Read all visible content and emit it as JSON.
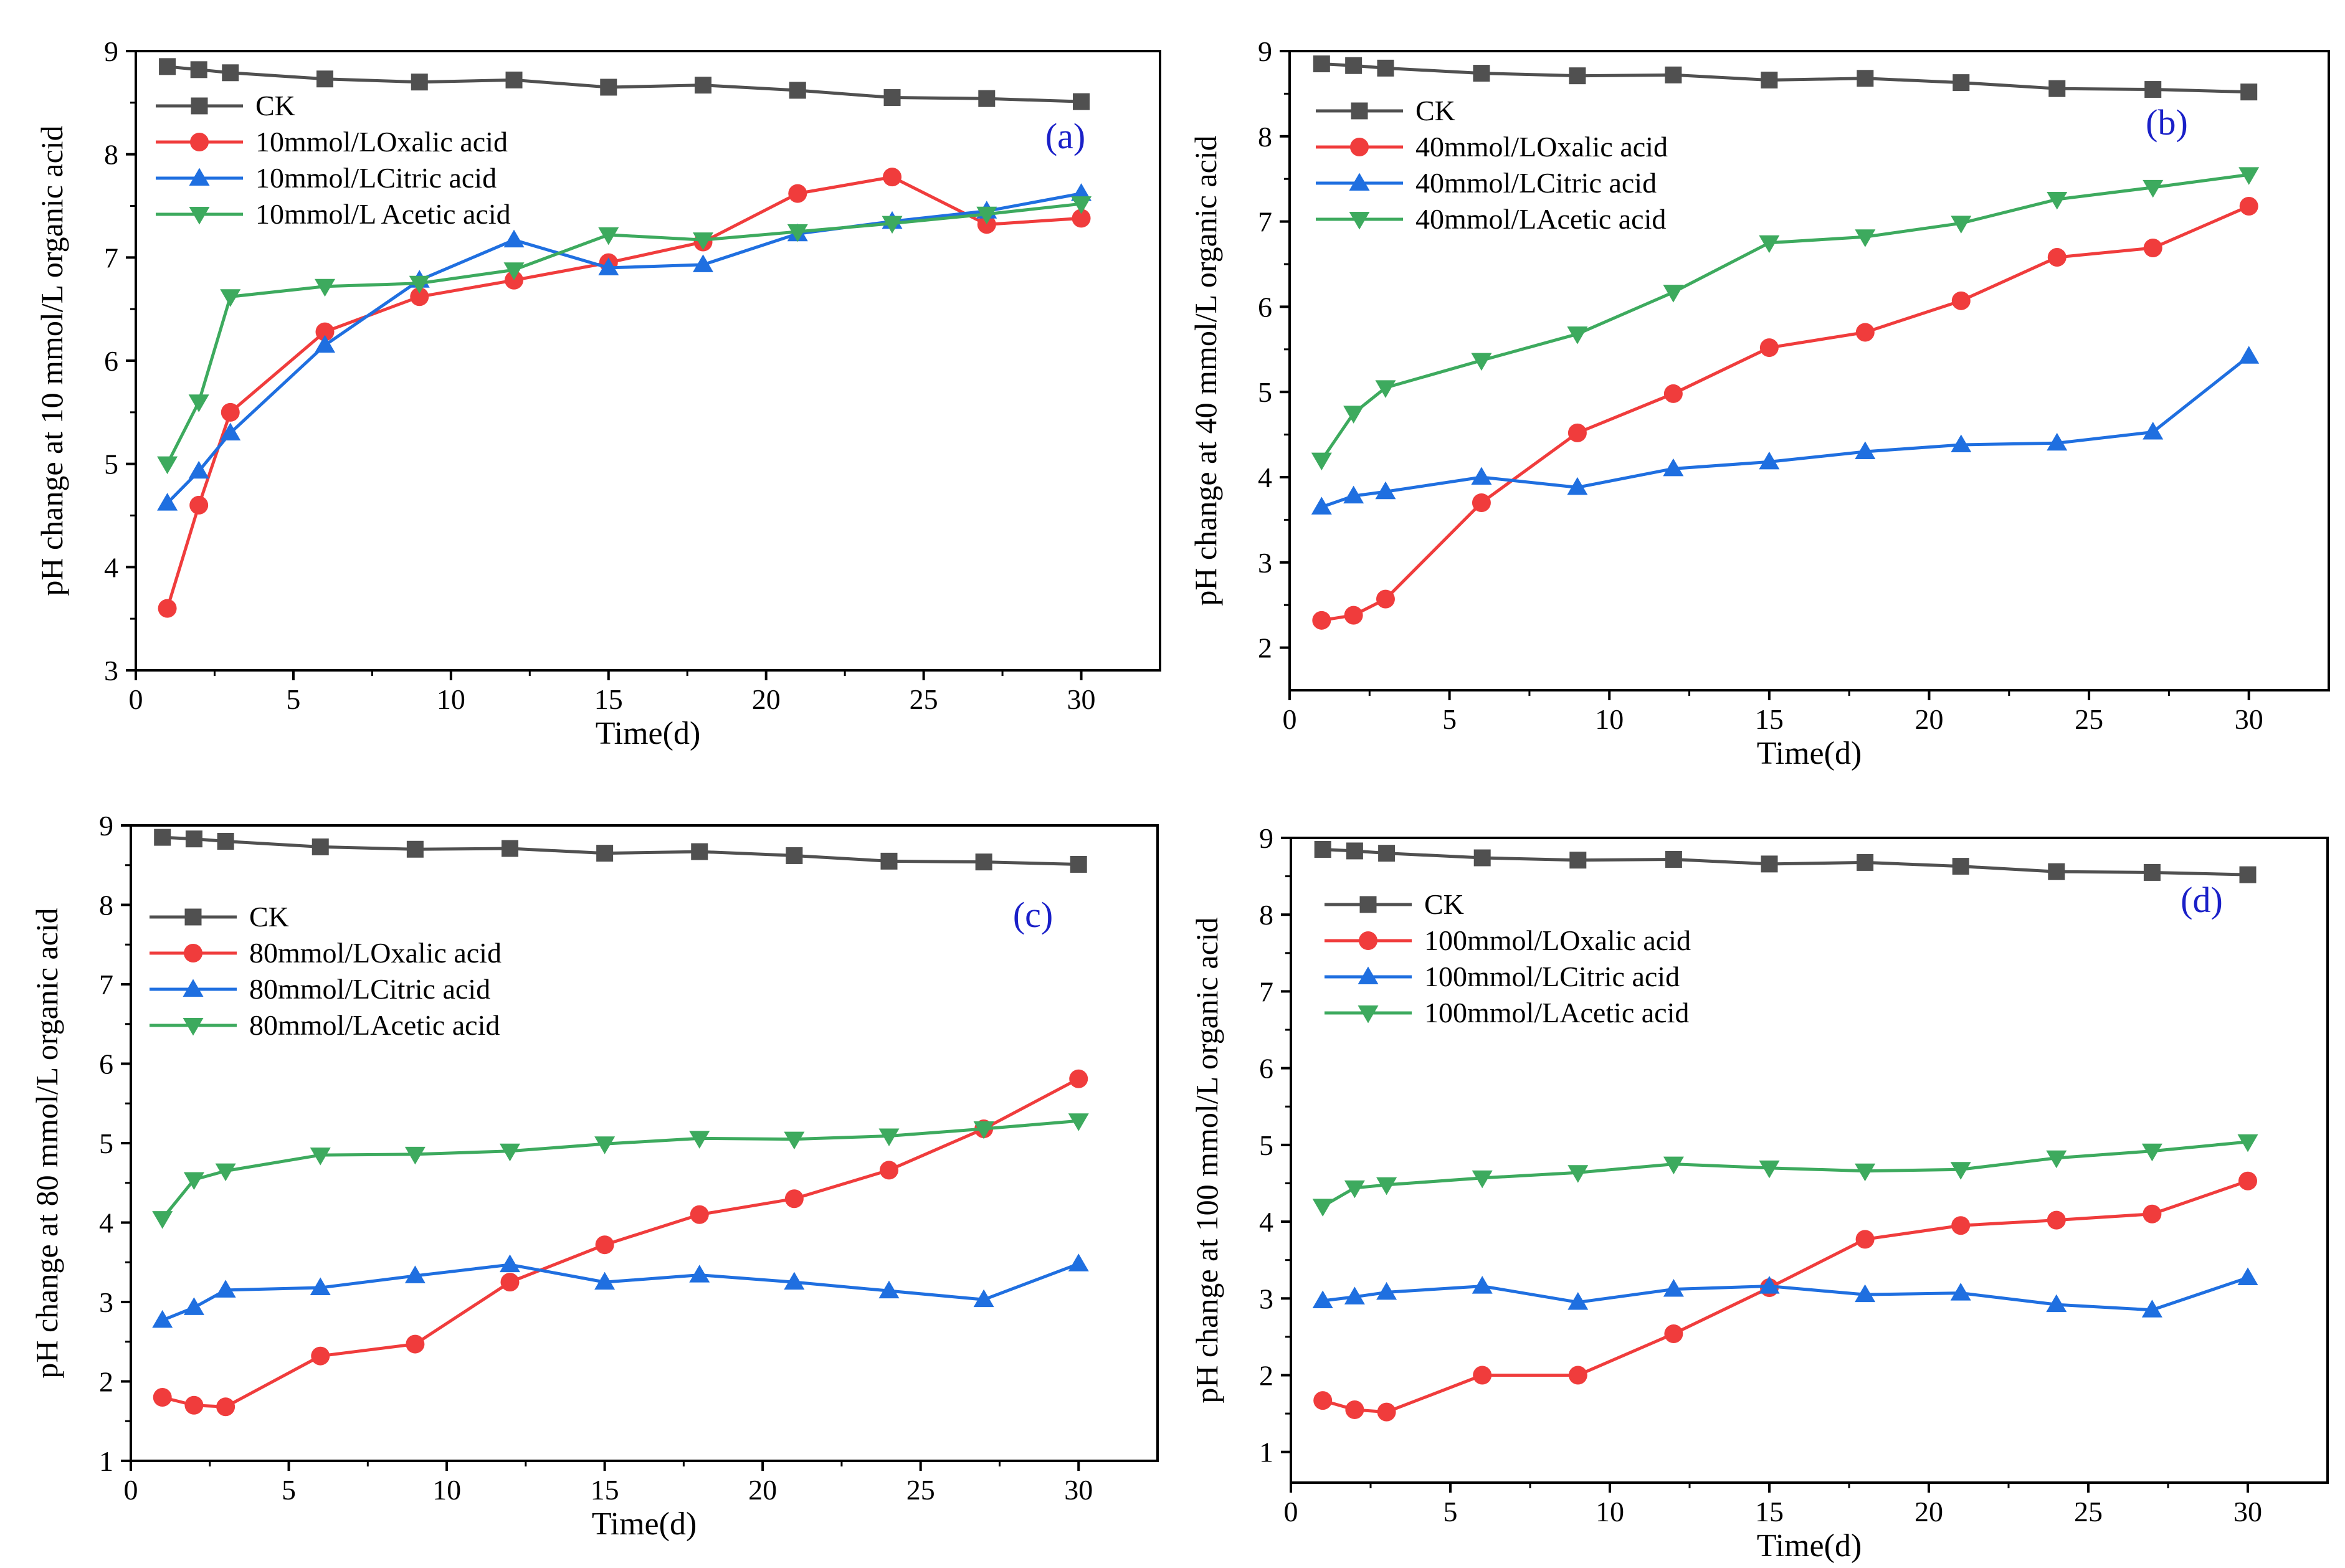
{
  "colors": {
    "CK": "#505050",
    "Oxalic": "#f03c3c",
    "Citric": "#1f6fe0",
    "Acetic": "#3daa5e",
    "panel_label": "#1a20c8"
  },
  "chart_data": [
    {
      "type": "line",
      "panel": "(a)",
      "xlabel": "Time(d)",
      "ylabel": "pH change at 10 mmol/L organic acid",
      "xlim": [
        0,
        32.5
      ],
      "ylim": [
        3,
        9
      ],
      "xticks": [
        0,
        5,
        10,
        15,
        20,
        25,
        30
      ],
      "yticks": [
        3,
        4,
        5,
        6,
        7,
        8,
        9
      ],
      "x": [
        1,
        2,
        3,
        6,
        9,
        12,
        15,
        18,
        21,
        24,
        27,
        30
      ],
      "series": [
        {
          "name": "CK",
          "key": "CK",
          "marker": "square",
          "values": [
            8.85,
            8.82,
            8.79,
            8.73,
            8.7,
            8.72,
            8.65,
            8.67,
            8.62,
            8.55,
            8.54,
            8.51
          ]
        },
        {
          "name": "10mmol/LOxalic acid",
          "key": "Oxalic",
          "marker": "circle",
          "values": [
            3.6,
            4.6,
            5.5,
            6.28,
            6.62,
            6.78,
            6.95,
            7.15,
            7.62,
            7.78,
            7.32,
            7.38
          ]
        },
        {
          "name": "10mmol/LCitric acid",
          "key": "Citric",
          "marker": "triangle-up",
          "values": [
            4.62,
            4.93,
            5.3,
            6.15,
            6.78,
            7.17,
            6.9,
            6.93,
            7.23,
            7.35,
            7.45,
            7.62
          ]
        },
        {
          "name": "10mmol/L Acetic acid",
          "key": "Acetic",
          "marker": "triangle-down",
          "values": [
            5.0,
            5.6,
            6.62,
            6.72,
            6.75,
            6.88,
            7.22,
            7.17,
            7.25,
            7.33,
            7.42,
            7.52
          ]
        }
      ]
    },
    {
      "type": "line",
      "panel": "(b)",
      "xlabel": "Time(d)",
      "ylabel": "pH change at 40 mmol/L organic acid",
      "xlim": [
        0,
        32.5
      ],
      "ylim": [
        1.5,
        9
      ],
      "xticks": [
        0,
        5,
        10,
        15,
        20,
        25,
        30
      ],
      "yticks": [
        2,
        3,
        4,
        5,
        6,
        7,
        8,
        9
      ],
      "x": [
        1,
        2,
        3,
        6,
        9,
        12,
        15,
        18,
        21,
        24,
        27,
        30
      ],
      "series": [
        {
          "name": "CK",
          "key": "CK",
          "marker": "square",
          "values": [
            8.85,
            8.83,
            8.8,
            8.74,
            8.71,
            8.72,
            8.66,
            8.68,
            8.63,
            8.56,
            8.55,
            8.52
          ]
        },
        {
          "name": "40mmol/LOxalic acid",
          "key": "Oxalic",
          "marker": "circle",
          "values": [
            2.32,
            2.38,
            2.57,
            3.7,
            4.52,
            4.98,
            5.52,
            5.7,
            6.07,
            6.58,
            6.69,
            7.18
          ]
        },
        {
          "name": "40mmol/LCitric acid",
          "key": "Citric",
          "marker": "triangle-up",
          "values": [
            3.65,
            3.78,
            3.83,
            4.0,
            3.88,
            4.1,
            4.18,
            4.3,
            4.38,
            4.4,
            4.53,
            5.42
          ]
        },
        {
          "name": "40mmol/LAcetic acid",
          "key": "Acetic",
          "marker": "triangle-down",
          "values": [
            4.2,
            4.75,
            5.05,
            5.37,
            5.68,
            6.17,
            6.75,
            6.82,
            6.98,
            7.26,
            7.4,
            7.55
          ]
        }
      ]
    },
    {
      "type": "line",
      "panel": "(c)",
      "xlabel": "Time(d)",
      "ylabel": "pH change at 80 mmol/L organic acid",
      "xlim": [
        0,
        32.5
      ],
      "ylim": [
        1,
        9
      ],
      "xticks": [
        0,
        5,
        10,
        15,
        20,
        25,
        30
      ],
      "yticks": [
        1,
        2,
        3,
        4,
        5,
        6,
        7,
        8,
        9
      ],
      "x": [
        1,
        2,
        3,
        6,
        9,
        12,
        15,
        18,
        21,
        24,
        27,
        30
      ],
      "series": [
        {
          "name": "CK",
          "key": "CK",
          "marker": "square",
          "values": [
            8.85,
            8.83,
            8.8,
            8.73,
            8.7,
            8.71,
            8.65,
            8.67,
            8.62,
            8.55,
            8.54,
            8.51
          ]
        },
        {
          "name": "80mmol/LOxalic acid",
          "key": "Oxalic",
          "marker": "circle",
          "values": [
            1.8,
            1.7,
            1.68,
            2.32,
            2.47,
            3.25,
            3.72,
            4.1,
            4.3,
            4.66,
            5.18,
            5.81
          ]
        },
        {
          "name": "80mmol/LCitric acid",
          "key": "Citric",
          "marker": "triangle-up",
          "values": [
            2.77,
            2.93,
            3.15,
            3.18,
            3.33,
            3.47,
            3.25,
            3.34,
            3.25,
            3.14,
            3.03,
            3.48
          ]
        },
        {
          "name": "80mmol/LAcetic acid",
          "key": "Acetic",
          "marker": "triangle-down",
          "values": [
            4.05,
            4.54,
            4.65,
            4.85,
            4.86,
            4.9,
            4.99,
            5.06,
            5.05,
            5.09,
            5.18,
            5.28
          ]
        }
      ]
    },
    {
      "type": "line",
      "panel": "(d)",
      "xlabel": "Time(d)",
      "ylabel": "pH change at 100 mmol/L organic acid",
      "xlim": [
        0,
        32.5
      ],
      "ylim": [
        0.6,
        9
      ],
      "xticks": [
        0,
        5,
        10,
        15,
        20,
        25,
        30
      ],
      "yticks": [
        1,
        2,
        3,
        4,
        5,
        6,
        7,
        8,
        9
      ],
      "x": [
        1,
        2,
        3,
        6,
        9,
        12,
        15,
        18,
        21,
        24,
        27,
        30
      ],
      "series": [
        {
          "name": "CK",
          "key": "CK",
          "marker": "square",
          "values": [
            8.85,
            8.83,
            8.8,
            8.74,
            8.71,
            8.72,
            8.66,
            8.68,
            8.63,
            8.56,
            8.55,
            8.52
          ]
        },
        {
          "name": "100mmol/LOxalic acid",
          "key": "Oxalic",
          "marker": "circle",
          "values": [
            1.67,
            1.55,
            1.52,
            2.0,
            2.0,
            2.54,
            3.14,
            3.77,
            3.95,
            4.02,
            4.1,
            4.53
          ]
        },
        {
          "name": "100mmol/LCitric acid",
          "key": "Citric",
          "marker": "triangle-up",
          "values": [
            2.97,
            3.02,
            3.08,
            3.16,
            2.95,
            3.12,
            3.16,
            3.05,
            3.07,
            2.92,
            2.85,
            3.27
          ]
        },
        {
          "name": "100mmol/LAcetic acid",
          "key": "Acetic",
          "marker": "triangle-down",
          "values": [
            4.2,
            4.44,
            4.48,
            4.57,
            4.64,
            4.75,
            4.7,
            4.66,
            4.68,
            4.83,
            4.92,
            5.04
          ]
        }
      ]
    }
  ]
}
